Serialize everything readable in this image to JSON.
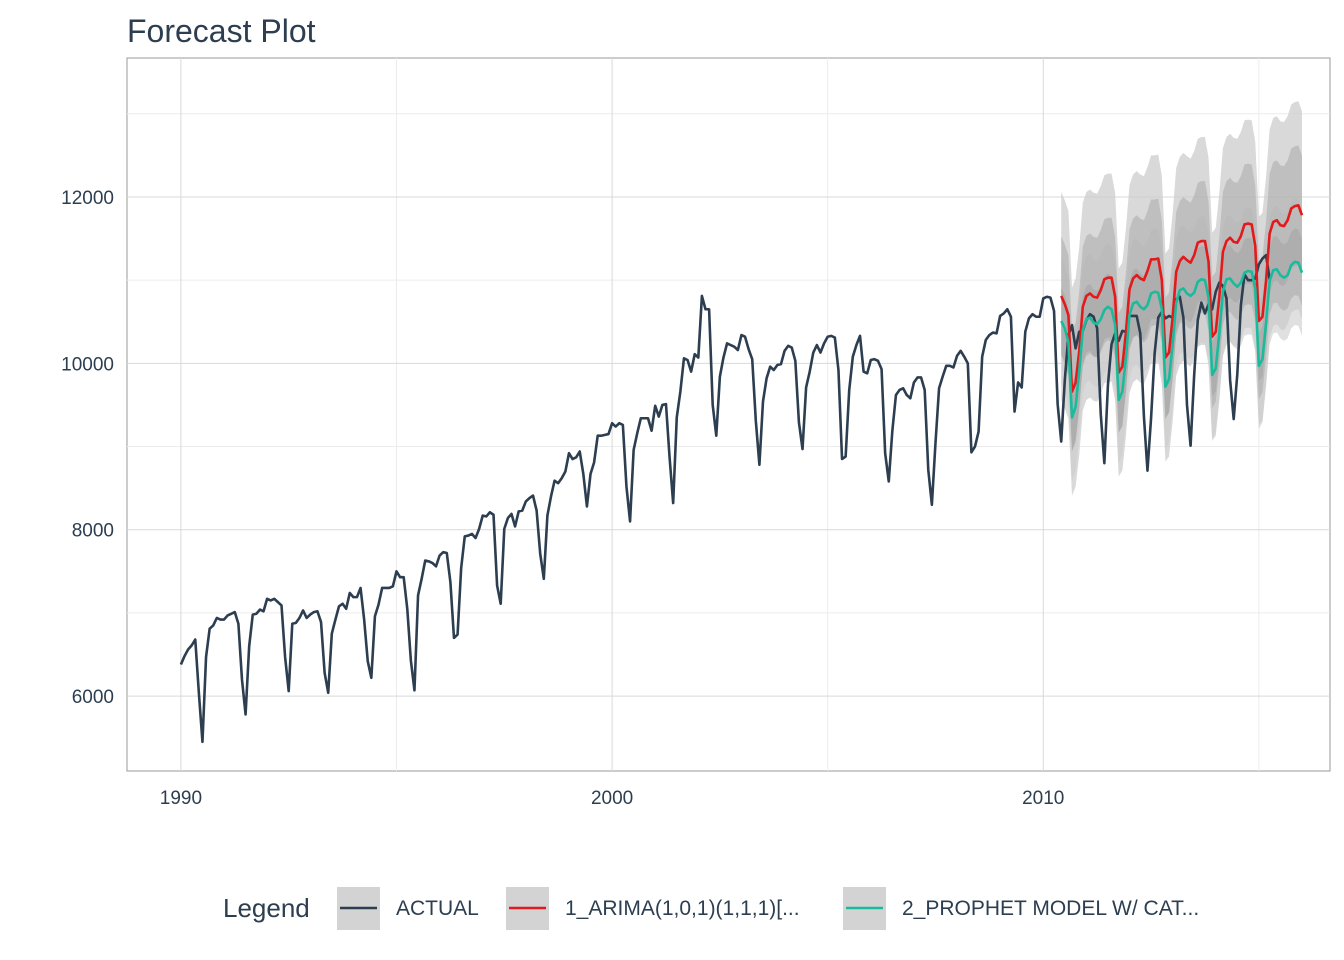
{
  "chart_data": {
    "type": "line",
    "title": "Forecast Plot",
    "xlabel": "",
    "ylabel": "",
    "xlim": [
      1988.75,
      2016.65
    ],
    "ylim": [
      5100,
      13670
    ],
    "x_ticks": [
      1990,
      2000,
      2010
    ],
    "y_ticks": [
      6000,
      8000,
      10000,
      12000
    ],
    "grid": true,
    "legend": {
      "title": "Legend",
      "placement": "bottom",
      "entries": [
        "ACTUAL",
        "1_ARIMA(1,0,1)(1,1,1)[...",
        "2_PROPHET MODEL W/ CAT..."
      ]
    },
    "colors": {
      "ACTUAL": "#2c3e50",
      "ARIMA": "#e31a1c",
      "PROPHET": "#18bc9c",
      "band_80": "#a0a0a0",
      "band_95": "#cccccc"
    },
    "actual": {
      "name": "ACTUAL",
      "start_year": 1990,
      "values": [
        6380,
        6480,
        6560,
        6610,
        6680,
        6040,
        5450,
        6470,
        6810,
        6850,
        6940,
        6920,
        6920,
        6970,
        6990,
        7010,
        6870,
        6200,
        5780,
        6600,
        6980,
        6990,
        7040,
        7020,
        7170,
        7150,
        7170,
        7130,
        7090,
        6470,
        6060,
        6870,
        6880,
        6940,
        7030,
        6940,
        6980,
        7010,
        7020,
        6890,
        6280,
        6040,
        6750,
        6920,
        7080,
        7110,
        7050,
        7240,
        7190,
        7190,
        7300,
        6920,
        6420,
        6220,
        6960,
        7100,
        7300,
        7300,
        7300,
        7320,
        7500,
        7430,
        7430,
        7050,
        6430,
        6070,
        7210,
        7410,
        7630,
        7620,
        7600,
        7560,
        7690,
        7730,
        7720,
        7370,
        6700,
        6740,
        7540,
        7920,
        7930,
        7950,
        7900,
        8010,
        8170,
        8160,
        8210,
        8180,
        7330,
        7110,
        8010,
        8140,
        8190,
        8040,
        8220,
        8230,
        8340,
        8380,
        8410,
        8230,
        7710,
        7410,
        8170,
        8400,
        8590,
        8560,
        8620,
        8700,
        8920,
        8850,
        8870,
        8940,
        8670,
        8280,
        8670,
        8810,
        9130,
        9130,
        9140,
        9150,
        9280,
        9240,
        9280,
        9260,
        8520,
        8100,
        8960,
        9160,
        9340,
        9340,
        9340,
        9190,
        9490,
        9360,
        9500,
        9510,
        8870,
        8320,
        9350,
        9660,
        10060,
        10040,
        9900,
        10110,
        10070,
        10810,
        10650,
        10650,
        9500,
        9130,
        9840,
        10070,
        10240,
        10220,
        10200,
        10160,
        10340,
        10320,
        10170,
        10050,
        9310,
        8780,
        9540,
        9820,
        9960,
        9920,
        9980,
        9990,
        10150,
        10210,
        10190,
        10030,
        9290,
        8970,
        9710,
        9900,
        10130,
        10220,
        10130,
        10240,
        10320,
        10330,
        10310,
        9920,
        8850,
        8880,
        9680,
        10080,
        10220,
        10330,
        9900,
        9880,
        10040,
        10050,
        10030,
        9930,
        8920,
        8580,
        9190,
        9620,
        9680,
        9700,
        9620,
        9580,
        9770,
        9830,
        9830,
        9680,
        8720,
        8300,
        9040,
        9700,
        9840,
        9970,
        9970,
        9950,
        10090,
        10150,
        10080,
        10000,
        8930,
        9000,
        9180,
        10080,
        10280,
        10340,
        10370,
        10360,
        10570,
        10600,
        10650,
        10560,
        9420,
        9770,
        9710,
        10380,
        10540,
        10590,
        10560,
        10560,
        10780,
        10800,
        10790,
        10630,
        9510,
        9060,
        9800,
        10340,
        10460,
        10180,
        10380,
        10390,
        10520,
        10590,
        10560,
        10420,
        9390,
        8800,
        9740,
        10230,
        10360,
        10270,
        10390,
        10380,
        10570,
        10570,
        10570,
        10360,
        9370,
        8710,
        9340,
        10120,
        10550,
        10620,
        10540,
        10570,
        10550,
        10770,
        10800,
        10550,
        9500,
        9010,
        9860,
        10520,
        10730,
        10600,
        10710,
        10650,
        10860,
        10970,
        10930,
        10780,
        9800,
        9330,
        9870,
        10700,
        11070,
        11000,
        11000,
        11020,
        11190,
        11260,
        11300,
        11010
      ]
    },
    "forecast": {
      "start_year": 2010.4167,
      "arima": {
        "name": "1_ARIMA(1,0,1)(1,1,1)[...",
        "values": [
          10810,
          10710,
          10580,
          9660,
          9770,
          10140,
          10680,
          10810,
          10840,
          10800,
          10790,
          10880,
          11010,
          11030,
          11030,
          10800,
          9890,
          9960,
          10370,
          10890,
          11020,
          11060,
          11020,
          11000,
          11110,
          11250,
          11250,
          11260,
          11000,
          10070,
          10130,
          10550,
          11100,
          11230,
          11280,
          11240,
          11210,
          11300,
          11450,
          11470,
          11470,
          11220,
          10320,
          10380,
          10800,
          11340,
          11470,
          11510,
          11460,
          11450,
          11530,
          11670,
          11680,
          11670,
          11410,
          10510,
          10560,
          10990,
          11560,
          11700,
          11720,
          11660,
          11650,
          11720,
          11860,
          11890,
          11900,
          11780
        ]
      },
      "prophet": {
        "name": "2_PROPHET MODEL W/ CAT...",
        "values": [
          10510,
          10420,
          10250,
          9350,
          9480,
          9900,
          10400,
          10530,
          10550,
          10490,
          10470,
          10530,
          10640,
          10680,
          10650,
          10460,
          9560,
          9660,
          10060,
          10580,
          10720,
          10740,
          10680,
          10650,
          10700,
          10840,
          10860,
          10850,
          10650,
          9720,
          9810,
          10220,
          10730,
          10880,
          10900,
          10840,
          10810,
          10850,
          10980,
          11010,
          11000,
          10790,
          9860,
          9940,
          10360,
          10860,
          11010,
          11020,
          10960,
          10920,
          10970,
          11090,
          11110,
          11100,
          10900,
          9970,
          10050,
          10480,
          10990,
          11120,
          11130,
          11060,
          11030,
          11060,
          11180,
          11220,
          11210,
          11090
        ]
      },
      "arima_ci80_half": 720,
      "arima_ci95_half": 1250,
      "prophet_ci80_half": 400,
      "prophet_ci95_half": 760
    }
  }
}
